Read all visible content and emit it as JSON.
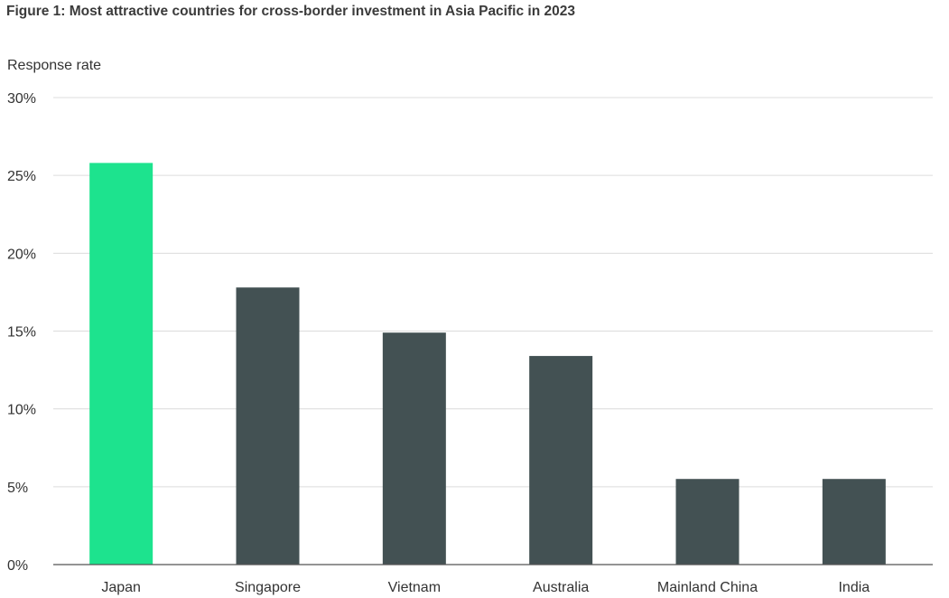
{
  "chart_data": {
    "type": "bar",
    "title": "Figure 1: Most attractive countries for cross-border investment in Asia Pacific in 2023",
    "ylabel": "Response rate",
    "xlabel": "",
    "categories": [
      "Japan",
      "Singapore",
      "Vietnam",
      "Australia",
      "Mainland China",
      "India"
    ],
    "values": [
      25.8,
      17.8,
      14.9,
      13.4,
      5.5,
      5.5
    ],
    "ylim": [
      0,
      30
    ],
    "yticks": [
      0,
      5,
      10,
      15,
      20,
      25,
      30
    ],
    "ytick_labels": [
      "0%",
      "5%",
      "10%",
      "15%",
      "20%",
      "25%",
      "30%"
    ],
    "grid": true,
    "legend": "none",
    "colors": {
      "highlight": "#1de38e",
      "default": "#435153",
      "grid": "#dcdcdc",
      "axis": "#555555"
    },
    "highlight_index": 0
  }
}
